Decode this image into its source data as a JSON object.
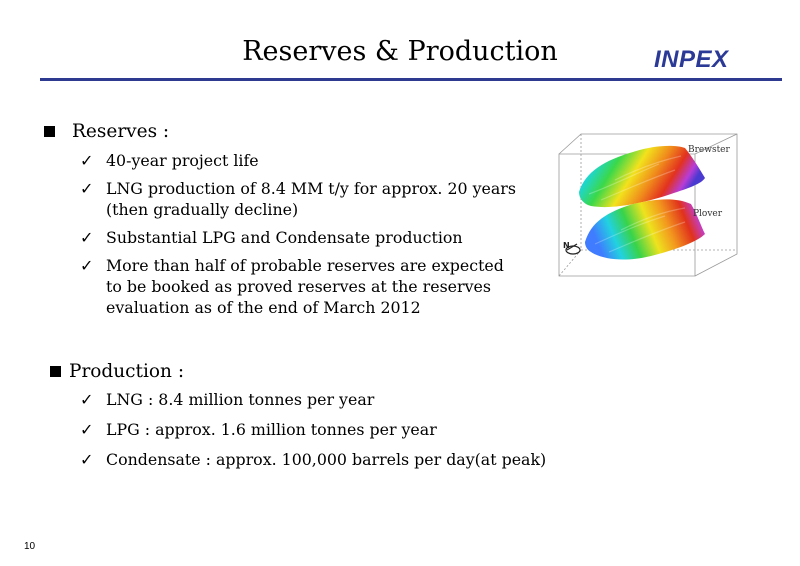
{
  "title": "Reserves & Production",
  "logo_text": "INPEX",
  "colors": {
    "brand": "#2e3a8f",
    "rule": "#2e3a8f"
  },
  "reserves": {
    "heading": "Reserves :",
    "items": [
      "40-year project life",
      "LNG production of 8.4 MM t/y for approx. 20 years (then gradually decline)",
      "Substantial LPG and Condensate production",
      "More than half of probable reserves are expected to be booked as proved reserves at the reserves evaluation as of the end of March 2012"
    ]
  },
  "production": {
    "heading": "Production :",
    "items": [
      "LNG :  8.4 million tonnes per year",
      "LPG : approx. 1.6 million tonnes per year",
      "Condensate : approx. 100,000 barrels per day(at peak)"
    ]
  },
  "figure": {
    "upper_label": "Brewster",
    "lower_label": "Plover",
    "north_label": "N"
  },
  "page_number": "10"
}
